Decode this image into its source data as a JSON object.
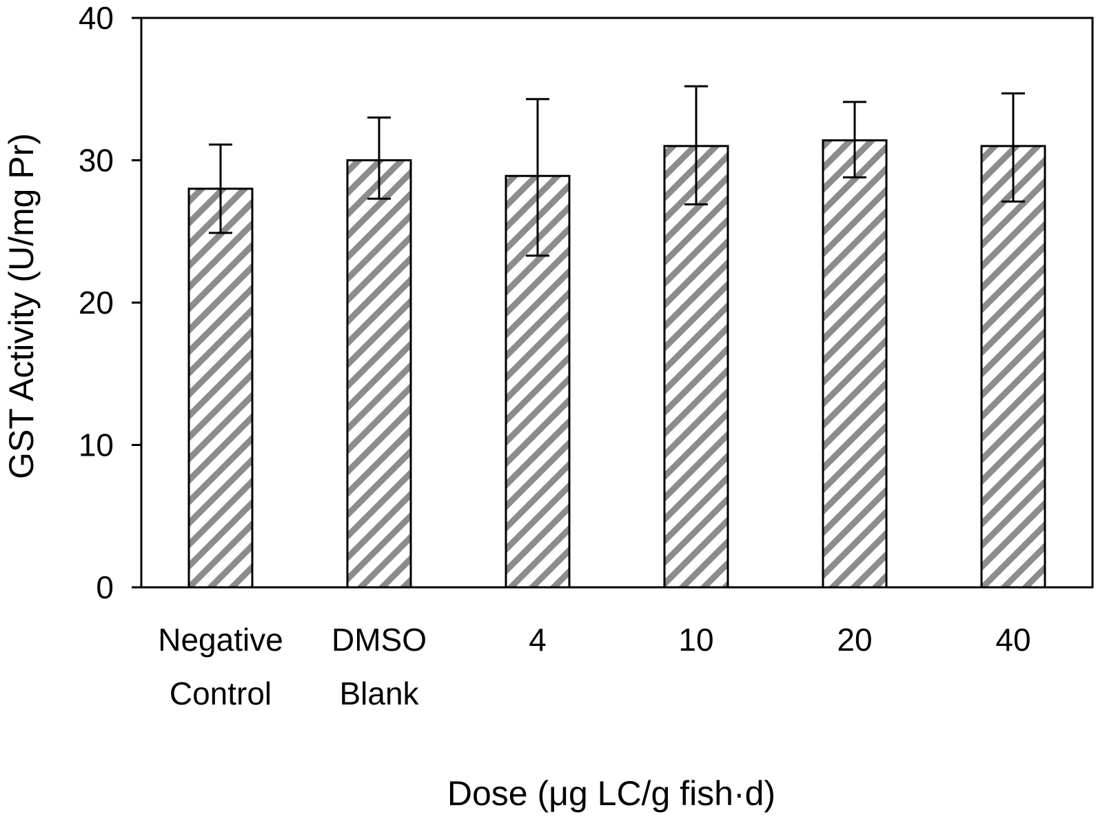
{
  "chart_data": {
    "type": "bar",
    "xlabel": "Dose (μg LC/g fish·d)",
    "ylabel": "GST Activity (U/mg Pr)",
    "ylim": [
      0,
      40
    ],
    "yticks": [
      0,
      10,
      20,
      30,
      40
    ],
    "grid": false,
    "legend": "none",
    "bar_pattern": "diagonal-hatch",
    "colors": {
      "hatch": "#8c8c8c",
      "bar_fill": "#ffffff",
      "outline": "#000000"
    },
    "categories": [
      [
        "Negative",
        "Control"
      ],
      [
        "DMSO",
        "Blank"
      ],
      [
        "4"
      ],
      [
        "10"
      ],
      [
        "20"
      ],
      [
        "40"
      ]
    ],
    "values": [
      28,
      30,
      28.9,
      31,
      31.4,
      31
    ],
    "error_upper": [
      31.1,
      33,
      34.3,
      35.2,
      34.1,
      34.7
    ],
    "error_lower": [
      24.9,
      27.3,
      23.3,
      26.9,
      28.8,
      27.1
    ]
  }
}
